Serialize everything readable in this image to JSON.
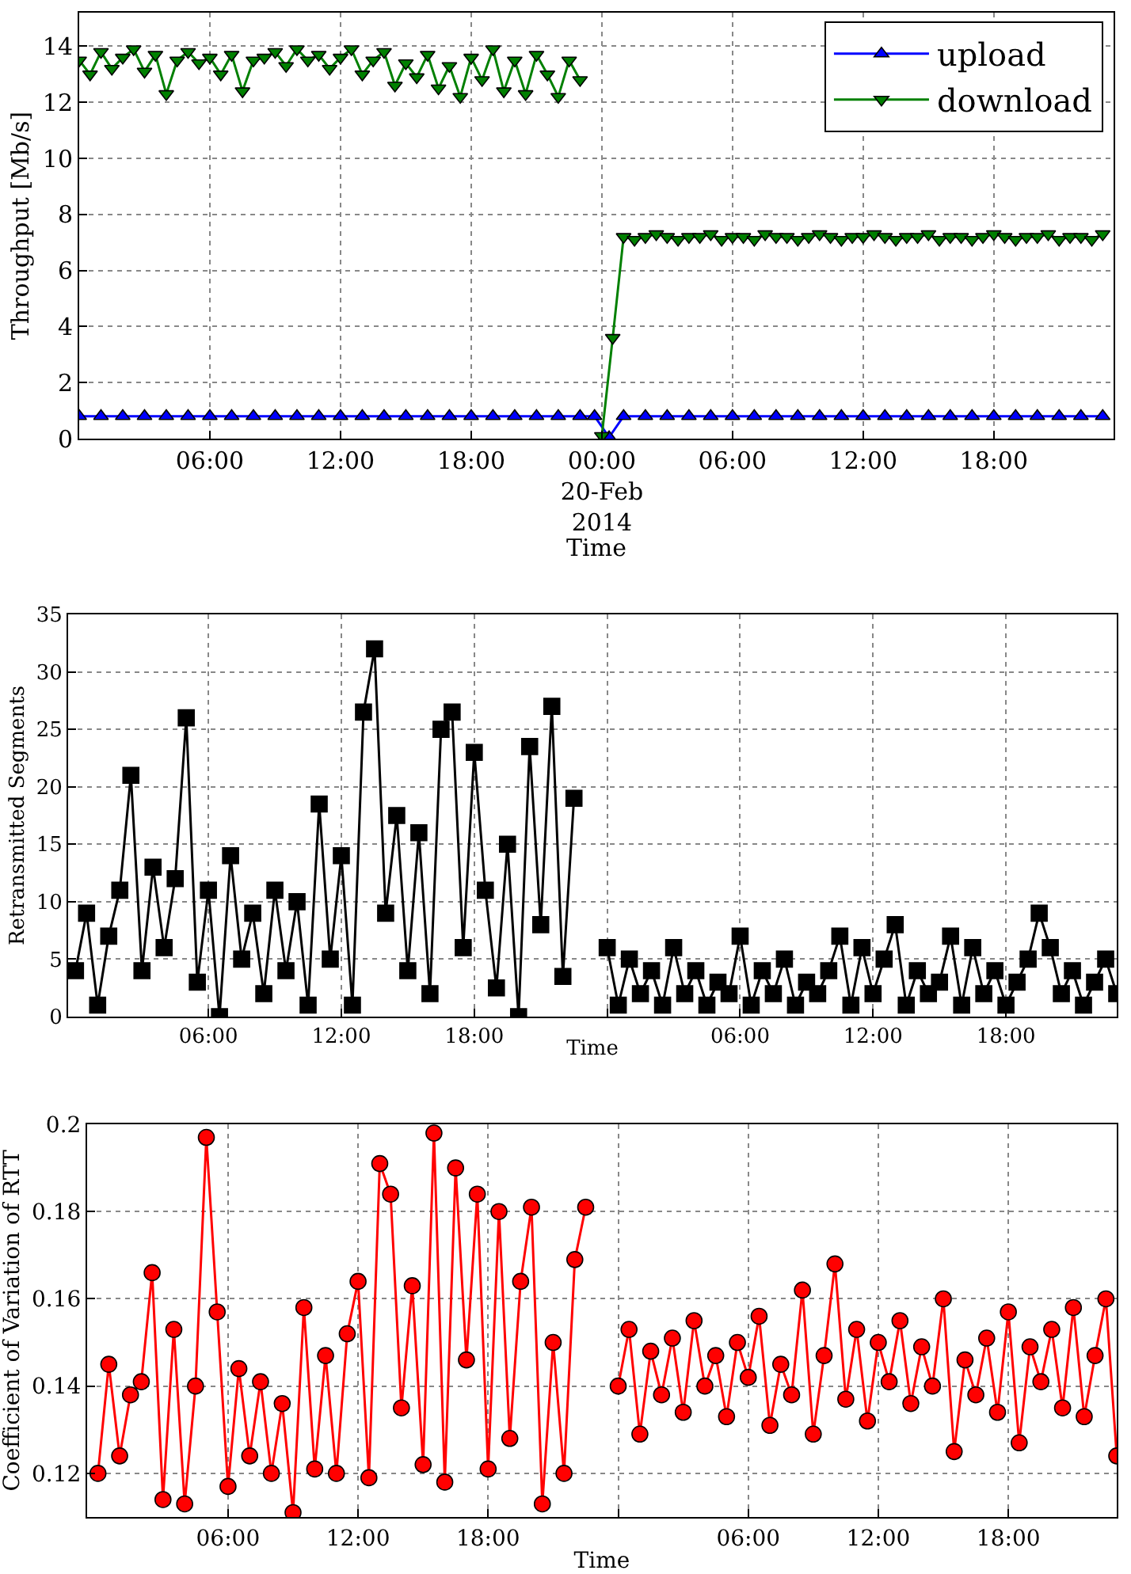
{
  "chart_data": [
    {
      "type": "line",
      "xlabel": "Time",
      "ylabel": "Throughput [Mb/s]",
      "xlim": [
        "2014-02-19T00:00",
        "2014-02-20T23:30"
      ],
      "ylim": [
        0,
        15.2
      ],
      "yticks": [
        0,
        2,
        4,
        6,
        8,
        10,
        12,
        14
      ],
      "xticks": [
        {
          "value": "2014-02-19T06:00",
          "label": "06:00"
        },
        {
          "value": "2014-02-19T12:00",
          "label": "12:00"
        },
        {
          "value": "2014-02-19T18:00",
          "label": "18:00"
        },
        {
          "value": "2014-02-20T00:00",
          "label": "00:00\n20-Feb\n2014"
        },
        {
          "value": "2014-02-20T06:00",
          "label": "06:00"
        },
        {
          "value": "2014-02-20T12:00",
          "label": "12:00"
        },
        {
          "value": "2014-02-20T18:00",
          "label": "18:00"
        }
      ],
      "grid": true,
      "legend": "top right",
      "x": [
        "2014-02-19T00:00",
        "2014-02-19T00:30",
        "2014-02-19T01:00",
        "2014-02-19T01:30",
        "2014-02-19T02:00",
        "2014-02-19T02:30",
        "2014-02-19T03:00",
        "2014-02-19T03:30",
        "2014-02-19T04:00",
        "2014-02-19T04:30",
        "2014-02-19T05:00",
        "2014-02-19T05:30",
        "2014-02-19T06:00",
        "2014-02-19T06:30",
        "2014-02-19T07:00",
        "2014-02-19T07:30",
        "2014-02-19T08:00",
        "2014-02-19T08:30",
        "2014-02-19T09:00",
        "2014-02-19T09:30",
        "2014-02-19T10:00",
        "2014-02-19T10:30",
        "2014-02-19T11:00",
        "2014-02-19T11:30",
        "2014-02-19T12:00",
        "2014-02-19T12:30",
        "2014-02-19T13:00",
        "2014-02-19T13:30",
        "2014-02-19T14:00",
        "2014-02-19T14:30",
        "2014-02-19T15:00",
        "2014-02-19T15:30",
        "2014-02-19T16:00",
        "2014-02-19T16:30",
        "2014-02-19T17:00",
        "2014-02-19T17:30",
        "2014-02-19T18:00",
        "2014-02-19T18:30",
        "2014-02-19T19:00",
        "2014-02-19T19:30",
        "2014-02-19T20:00",
        "2014-02-19T20:30",
        "2014-02-19T21:00",
        "2014-02-19T21:30",
        "2014-02-19T22:00",
        "2014-02-19T22:30",
        "2014-02-19T23:00",
        "2014-02-19T23:30",
        "2014-02-20T00:00",
        "2014-02-20T00:30",
        "2014-02-20T01:00",
        "2014-02-20T01:30",
        "2014-02-20T02:00",
        "2014-02-20T02:30",
        "2014-02-20T03:00",
        "2014-02-20T03:30",
        "2014-02-20T04:00",
        "2014-02-20T04:30",
        "2014-02-20T05:00",
        "2014-02-20T05:30",
        "2014-02-20T06:00",
        "2014-02-20T06:30",
        "2014-02-20T07:00",
        "2014-02-20T07:30",
        "2014-02-20T08:00",
        "2014-02-20T08:30",
        "2014-02-20T09:00",
        "2014-02-20T09:30",
        "2014-02-20T10:00",
        "2014-02-20T10:30",
        "2014-02-20T11:00",
        "2014-02-20T11:30",
        "2014-02-20T12:00",
        "2014-02-20T12:30",
        "2014-02-20T13:00",
        "2014-02-20T13:30",
        "2014-02-20T14:00",
        "2014-02-20T14:30",
        "2014-02-20T15:00",
        "2014-02-20T15:30",
        "2014-02-20T16:00",
        "2014-02-20T16:30",
        "2014-02-20T17:00",
        "2014-02-20T17:30",
        "2014-02-20T18:00",
        "2014-02-20T18:30",
        "2014-02-20T19:00",
        "2014-02-20T19:30",
        "2014-02-20T20:00",
        "2014-02-20T20:30",
        "2014-02-20T21:00",
        "2014-02-20T21:30",
        "2014-02-20T22:00",
        "2014-02-20T22:30",
        "2014-02-20T23:00"
      ],
      "series": [
        {
          "name": "upload",
          "color": "#0000ff",
          "marker": "triangle",
          "x": [
            "2014-02-19T00:00",
            "2014-02-19T01:00",
            "2014-02-19T02:00",
            "2014-02-19T03:00",
            "2014-02-19T04:00",
            "2014-02-19T05:00",
            "2014-02-19T06:00",
            "2014-02-19T07:00",
            "2014-02-19T08:00",
            "2014-02-19T09:00",
            "2014-02-19T10:00",
            "2014-02-19T11:00",
            "2014-02-19T12:00",
            "2014-02-19T13:00",
            "2014-02-19T14:00",
            "2014-02-19T15:00",
            "2014-02-19T16:00",
            "2014-02-19T17:00",
            "2014-02-19T18:00",
            "2014-02-19T19:00",
            "2014-02-19T20:00",
            "2014-02-19T21:00",
            "2014-02-19T22:00",
            "2014-02-19T23:00",
            "2014-02-19T23:40",
            "2014-02-20T00:20",
            "2014-02-20T01:00",
            "2014-02-20T02:00",
            "2014-02-20T03:00",
            "2014-02-20T04:00",
            "2014-02-20T05:00",
            "2014-02-20T06:00",
            "2014-02-20T07:00",
            "2014-02-20T08:00",
            "2014-02-20T09:00",
            "2014-02-20T10:00",
            "2014-02-20T11:00",
            "2014-02-20T12:00",
            "2014-02-20T13:00",
            "2014-02-20T14:00",
            "2014-02-20T15:00",
            "2014-02-20T16:00",
            "2014-02-20T17:00",
            "2014-02-20T18:00",
            "2014-02-20T19:00",
            "2014-02-20T20:00",
            "2014-02-20T21:00",
            "2014-02-20T22:00",
            "2014-02-20T23:00"
          ],
          "values": [
            0.8,
            0.8,
            0.8,
            0.8,
            0.8,
            0.8,
            0.8,
            0.8,
            0.8,
            0.8,
            0.8,
            0.8,
            0.8,
            0.8,
            0.8,
            0.8,
            0.8,
            0.8,
            0.8,
            0.8,
            0.8,
            0.8,
            0.8,
            0.8,
            0.8,
            0.05,
            0.8,
            0.8,
            0.8,
            0.8,
            0.8,
            0.8,
            0.8,
            0.8,
            0.8,
            0.8,
            0.8,
            0.8,
            0.8,
            0.8,
            0.8,
            0.8,
            0.8,
            0.8,
            0.8,
            0.8,
            0.8,
            0.8,
            0.8
          ]
        },
        {
          "name": "download",
          "color": "#008000",
          "marker": "triangle-down",
          "values": [
            13.5,
            13.0,
            13.8,
            13.2,
            13.6,
            13.9,
            13.1,
            13.7,
            12.3,
            13.5,
            13.8,
            13.4,
            13.6,
            13.0,
            13.7,
            12.4,
            13.5,
            13.6,
            13.8,
            13.3,
            13.9,
            13.5,
            13.7,
            13.2,
            13.6,
            13.9,
            13.0,
            13.5,
            13.8,
            12.6,
            13.4,
            12.9,
            13.7,
            12.5,
            13.3,
            12.2,
            13.6,
            12.8,
            13.9,
            12.4,
            13.5,
            12.3,
            13.7,
            13.0,
            12.2,
            13.5,
            12.8,
            null,
            0.1,
            3.6,
            7.2,
            7.1,
            7.2,
            7.3,
            7.2,
            7.1,
            7.2,
            7.2,
            7.3,
            7.1,
            7.2,
            7.2,
            7.1,
            7.3,
            7.2,
            7.2,
            7.1,
            7.2,
            7.3,
            7.2,
            7.1,
            7.2,
            7.2,
            7.3,
            7.2,
            7.1,
            7.2,
            7.2,
            7.3,
            7.1,
            7.2,
            7.2,
            7.1,
            7.2,
            7.3,
            7.2,
            7.1,
            7.2,
            7.2,
            7.3,
            7.1,
            7.2,
            7.2,
            7.1,
            7.3
          ]
        }
      ]
    },
    {
      "type": "line",
      "xlabel": "Time",
      "ylabel": "Retransmitted Segments",
      "xlim": [
        "2014-02-18T23:40",
        "2014-02-20T23:00"
      ],
      "ylim": [
        0,
        35
      ],
      "yticks": [
        0,
        5,
        10,
        15,
        20,
        25,
        30,
        35
      ],
      "xticks": [
        {
          "value": "2014-02-19T06:00",
          "label": "06:00"
        },
        {
          "value": "2014-02-19T12:00",
          "label": "12:00"
        },
        {
          "value": "2014-02-19T18:00",
          "label": "18:00"
        },
        {
          "value": "2014-02-20T00:00",
          "label": null
        },
        {
          "value": "2014-02-20T06:00",
          "label": "06:00"
        },
        {
          "value": "2014-02-20T12:00",
          "label": "12:00"
        },
        {
          "value": "2014-02-20T18:00",
          "label": "18:00"
        }
      ],
      "grid": true,
      "x": [
        "2014-02-19T00:00",
        "2014-02-19T00:30",
        "2014-02-19T01:00",
        "2014-02-19T01:30",
        "2014-02-19T02:00",
        "2014-02-19T02:30",
        "2014-02-19T03:00",
        "2014-02-19T03:30",
        "2014-02-19T04:00",
        "2014-02-19T04:30",
        "2014-02-19T05:00",
        "2014-02-19T05:30",
        "2014-02-19T06:00",
        "2014-02-19T06:30",
        "2014-02-19T07:00",
        "2014-02-19T07:30",
        "2014-02-19T08:00",
        "2014-02-19T08:30",
        "2014-02-19T09:00",
        "2014-02-19T09:30",
        "2014-02-19T10:00",
        "2014-02-19T10:30",
        "2014-02-19T11:00",
        "2014-02-19T11:30",
        "2014-02-19T12:00",
        "2014-02-19T12:30",
        "2014-02-19T13:00",
        "2014-02-19T13:30",
        "2014-02-19T14:00",
        "2014-02-19T14:30",
        "2014-02-19T15:00",
        "2014-02-19T15:30",
        "2014-02-19T16:00",
        "2014-02-19T16:30",
        "2014-02-19T17:00",
        "2014-02-19T17:30",
        "2014-02-19T18:00",
        "2014-02-19T18:30",
        "2014-02-19T19:00",
        "2014-02-19T19:30",
        "2014-02-19T20:00",
        "2014-02-19T20:30",
        "2014-02-19T21:00",
        "2014-02-19T21:30",
        "2014-02-19T22:00",
        "2014-02-19T22:30",
        "2014-02-19T23:00",
        "2014-02-19T23:30",
        "2014-02-20T00:00",
        "2014-02-20T00:30",
        "2014-02-20T01:00",
        "2014-02-20T01:30",
        "2014-02-20T02:00",
        "2014-02-20T02:30",
        "2014-02-20T03:00",
        "2014-02-20T03:30",
        "2014-02-20T04:00",
        "2014-02-20T04:30",
        "2014-02-20T05:00",
        "2014-02-20T05:30",
        "2014-02-20T06:00",
        "2014-02-20T06:30",
        "2014-02-20T07:00",
        "2014-02-20T07:30",
        "2014-02-20T08:00",
        "2014-02-20T08:30",
        "2014-02-20T09:00",
        "2014-02-20T09:30",
        "2014-02-20T10:00",
        "2014-02-20T10:30",
        "2014-02-20T11:00",
        "2014-02-20T11:30",
        "2014-02-20T12:00",
        "2014-02-20T12:30",
        "2014-02-20T13:00",
        "2014-02-20T13:30",
        "2014-02-20T14:00",
        "2014-02-20T14:30",
        "2014-02-20T15:00",
        "2014-02-20T15:30",
        "2014-02-20T16:00",
        "2014-02-20T16:30",
        "2014-02-20T17:00",
        "2014-02-20T17:30",
        "2014-02-20T18:00",
        "2014-02-20T18:30",
        "2014-02-20T19:00",
        "2014-02-20T19:30",
        "2014-02-20T20:00",
        "2014-02-20T20:30",
        "2014-02-20T21:00",
        "2014-02-20T21:30",
        "2014-02-20T22:00",
        "2014-02-20T22:30",
        "2014-02-20T23:00"
      ],
      "series": [
        {
          "color": "#000000",
          "marker": "square",
          "values": [
            4,
            9,
            1,
            7,
            11,
            21,
            4,
            13,
            6,
            12,
            26,
            3,
            11,
            0,
            14,
            5,
            9,
            2,
            11,
            4,
            10,
            1,
            18.5,
            5,
            14,
            1,
            26.5,
            32,
            9,
            17.5,
            4,
            16,
            2,
            25,
            26.5,
            6,
            23,
            11,
            2.5,
            15,
            0,
            23.5,
            8,
            27,
            3.5,
            19,
            null,
            null,
            6,
            1,
            5,
            2,
            4,
            1,
            6,
            2,
            4,
            1,
            3,
            2,
            7,
            1,
            4,
            2,
            5,
            1,
            3,
            2,
            4,
            7,
            1,
            6,
            2,
            5,
            8,
            1,
            4,
            2,
            3,
            7,
            1,
            6,
            2,
            4,
            1,
            3,
            5,
            9,
            6,
            2,
            4,
            1,
            3,
            5,
            2
          ]
        }
      ]
    },
    {
      "type": "line",
      "xlabel": "Time",
      "ylabel": "Coefficient of Variation of RTT",
      "xlim": [
        "2014-02-18T23:30",
        "2014-02-20T23:00"
      ],
      "ylim": [
        0.11,
        0.2
      ],
      "yticks": [
        0.12,
        0.14,
        0.16,
        0.18,
        0.2
      ],
      "xticks": [
        {
          "value": "2014-02-19T06:00",
          "label": "06:00"
        },
        {
          "value": "2014-02-19T12:00",
          "label": "12:00"
        },
        {
          "value": "2014-02-19T18:00",
          "label": "18:00"
        },
        {
          "value": "2014-02-20T00:00",
          "label": null
        },
        {
          "value": "2014-02-20T06:00",
          "label": "06:00"
        },
        {
          "value": "2014-02-20T12:00",
          "label": "12:00"
        },
        {
          "value": "2014-02-20T18:00",
          "label": "18:00"
        }
      ],
      "grid": true,
      "x": [
        "2014-02-19T00:00",
        "2014-02-19T00:30",
        "2014-02-19T01:00",
        "2014-02-19T01:30",
        "2014-02-19T02:00",
        "2014-02-19T02:30",
        "2014-02-19T03:00",
        "2014-02-19T03:30",
        "2014-02-19T04:00",
        "2014-02-19T04:30",
        "2014-02-19T05:00",
        "2014-02-19T05:30",
        "2014-02-19T06:00",
        "2014-02-19T06:30",
        "2014-02-19T07:00",
        "2014-02-19T07:30",
        "2014-02-19T08:00",
        "2014-02-19T08:30",
        "2014-02-19T09:00",
        "2014-02-19T09:30",
        "2014-02-19T10:00",
        "2014-02-19T10:30",
        "2014-02-19T11:00",
        "2014-02-19T11:30",
        "2014-02-19T12:00",
        "2014-02-19T12:30",
        "2014-02-19T13:00",
        "2014-02-19T13:30",
        "2014-02-19T14:00",
        "2014-02-19T14:30",
        "2014-02-19T15:00",
        "2014-02-19T15:30",
        "2014-02-19T16:00",
        "2014-02-19T16:30",
        "2014-02-19T17:00",
        "2014-02-19T17:30",
        "2014-02-19T18:00",
        "2014-02-19T18:30",
        "2014-02-19T19:00",
        "2014-02-19T19:30",
        "2014-02-19T20:00",
        "2014-02-19T20:30",
        "2014-02-19T21:00",
        "2014-02-19T21:30",
        "2014-02-19T22:00",
        "2014-02-19T22:30",
        "2014-02-19T23:00",
        "2014-02-19T23:30",
        "2014-02-20T00:00",
        "2014-02-20T00:30",
        "2014-02-20T01:00",
        "2014-02-20T01:30",
        "2014-02-20T02:00",
        "2014-02-20T02:30",
        "2014-02-20T03:00",
        "2014-02-20T03:30",
        "2014-02-20T04:00",
        "2014-02-20T04:30",
        "2014-02-20T05:00",
        "2014-02-20T05:30",
        "2014-02-20T06:00",
        "2014-02-20T06:30",
        "2014-02-20T07:00",
        "2014-02-20T07:30",
        "2014-02-20T08:00",
        "2014-02-20T08:30",
        "2014-02-20T09:00",
        "2014-02-20T09:30",
        "2014-02-20T10:00",
        "2014-02-20T10:30",
        "2014-02-20T11:00",
        "2014-02-20T11:30",
        "2014-02-20T12:00",
        "2014-02-20T12:30",
        "2014-02-20T13:00",
        "2014-02-20T13:30",
        "2014-02-20T14:00",
        "2014-02-20T14:30",
        "2014-02-20T15:00",
        "2014-02-20T15:30",
        "2014-02-20T16:00",
        "2014-02-20T16:30",
        "2014-02-20T17:00",
        "2014-02-20T17:30",
        "2014-02-20T18:00",
        "2014-02-20T18:30",
        "2014-02-20T19:00",
        "2014-02-20T19:30",
        "2014-02-20T20:00",
        "2014-02-20T20:30",
        "2014-02-20T21:00",
        "2014-02-20T21:30",
        "2014-02-20T22:00",
        "2014-02-20T22:30",
        "2014-02-20T23:00"
      ],
      "series": [
        {
          "color": "#ff0000",
          "marker": "circle",
          "values": [
            0.12,
            0.145,
            0.124,
            0.138,
            0.141,
            0.166,
            0.114,
            0.153,
            0.113,
            0.14,
            0.197,
            0.157,
            0.117,
            0.144,
            0.124,
            0.141,
            0.12,
            0.136,
            0.111,
            0.158,
            0.121,
            0.147,
            0.12,
            0.152,
            0.164,
            0.119,
            0.191,
            0.184,
            0.135,
            0.163,
            0.122,
            0.198,
            0.118,
            0.19,
            0.146,
            0.184,
            0.121,
            0.18,
            0.128,
            0.164,
            0.181,
            0.113,
            0.15,
            0.12,
            0.169,
            0.181,
            null,
            null,
            0.14,
            0.153,
            0.129,
            0.148,
            0.138,
            0.151,
            0.134,
            0.155,
            0.14,
            0.147,
            0.133,
            0.15,
            0.142,
            0.156,
            0.131,
            0.145,
            0.138,
            0.162,
            0.129,
            0.147,
            0.168,
            0.137,
            0.153,
            0.132,
            0.15,
            0.141,
            0.155,
            0.136,
            0.149,
            0.14,
            0.16,
            0.125,
            0.146,
            0.138,
            0.151,
            0.134,
            0.157,
            0.127,
            0.149,
            0.141,
            0.153,
            0.135,
            0.158,
            0.133,
            0.147,
            0.16,
            0.124
          ]
        }
      ]
    }
  ]
}
